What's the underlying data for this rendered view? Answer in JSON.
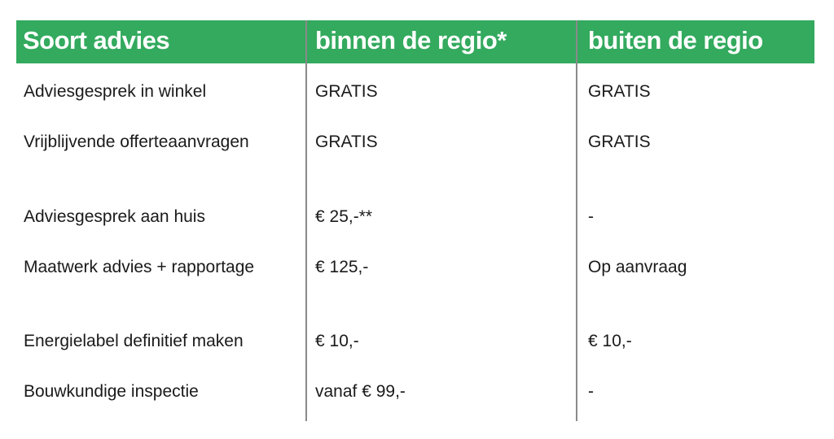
{
  "colors": {
    "header_bg": "#33aa5e",
    "header_text": "#ffffff",
    "divider": "#8a8a8a"
  },
  "table": {
    "headers": [
      "Soort advies",
      "binnen de regio*",
      "buiten de regio"
    ],
    "rows": [
      [
        "Adviesgesprek in winkel",
        "GRATIS",
        "GRATIS"
      ],
      [
        "Vrijblijvende offerteaanvragen",
        "GRATIS",
        "GRATIS"
      ],
      [
        "Adviesgesprek aan huis",
        "€ 25,-**",
        "-"
      ],
      [
        "Maatwerk advies + rapportage",
        "€ 125,-",
        "Op aanvraag"
      ],
      [
        "Energielabel definitief maken",
        "€ 10,-",
        "€ 10,-"
      ],
      [
        "Bouwkundige inspectie",
        "vanaf € 99,-",
        "-"
      ]
    ]
  }
}
